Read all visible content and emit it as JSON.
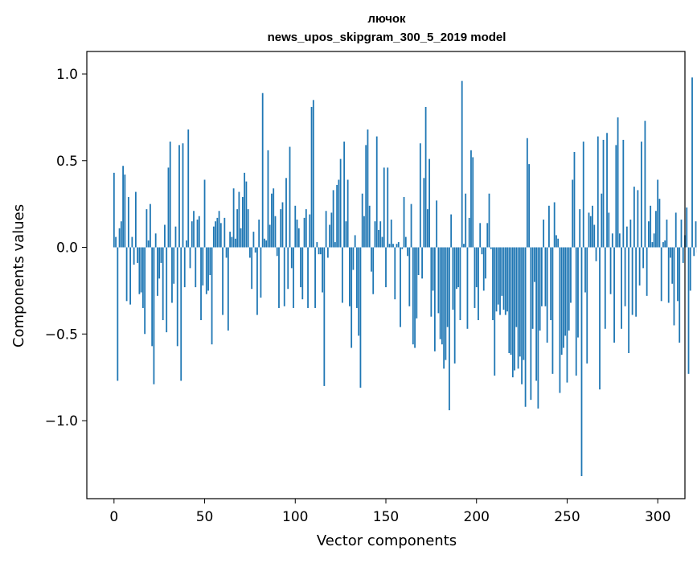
{
  "chart_data": {
    "type": "bar",
    "title_line1": "лючок",
    "title_line2": "news_upos_skipgram_300_5_2019 model",
    "xlabel": "Vector components",
    "ylabel": "Components values",
    "xlim": [
      -15,
      315
    ],
    "ylim": [
      -1.45,
      1.13
    ],
    "xticks": [
      0,
      50,
      100,
      150,
      200,
      250,
      300
    ],
    "xtick_labels": [
      "0",
      "50",
      "100",
      "150",
      "200",
      "250",
      "300"
    ],
    "yticks": [
      1.0,
      0.5,
      0.0,
      -0.5,
      -1.0
    ],
    "ytick_labels": [
      "1.0",
      "0.5",
      "0.0",
      "−0.5",
      "−1.0"
    ],
    "bar_color": "#1f77b4",
    "values": [
      0.43,
      0.06,
      -0.77,
      0.11,
      0.15,
      0.47,
      0.42,
      -0.31,
      0.29,
      -0.33,
      0.06,
      -0.1,
      0.32,
      -0.09,
      -0.27,
      -0.26,
      -0.35,
      -0.5,
      0.22,
      0.04,
      0.25,
      -0.57,
      -0.79,
      0.08,
      -0.28,
      -0.18,
      -0.09,
      -0.42,
      0.13,
      -0.49,
      0.46,
      0.61,
      -0.32,
      -0.21,
      0.12,
      -0.57,
      0.59,
      -0.77,
      0.6,
      -0.23,
      0.04,
      0.68,
      -0.12,
      0.15,
      0.21,
      -0.23,
      0.16,
      0.18,
      -0.42,
      -0.22,
      0.39,
      -0.27,
      -0.25,
      -0.16,
      -0.56,
      0.12,
      0.15,
      0.17,
      0.21,
      0.14,
      -0.39,
      0.17,
      -0.06,
      -0.48,
      0.09,
      0.06,
      0.34,
      0.05,
      0.22,
      0.32,
      0.11,
      0.29,
      0.43,
      0.38,
      0.22,
      -0.06,
      -0.24,
      0.09,
      -0.03,
      -0.39,
      0.16,
      -0.29,
      0.89,
      0.05,
      0.04,
      0.56,
      0.13,
      0.31,
      0.34,
      0.18,
      -0.05,
      -0.35,
      0.22,
      0.26,
      -0.34,
      0.4,
      -0.24,
      0.58,
      -0.12,
      -0.35,
      0.24,
      0.16,
      0.11,
      -0.23,
      -0.3,
      0.17,
      0.22,
      -0.35,
      0.19,
      0.81,
      0.85,
      -0.35,
      0.03,
      -0.04,
      -0.04,
      -0.26,
      -0.8,
      0.21,
      -0.06,
      0.13,
      0.2,
      0.33,
      0.03,
      0.36,
      0.39,
      0.51,
      -0.32,
      0.61,
      0.15,
      0.39,
      -0.34,
      -0.58,
      -0.13,
      0.07,
      -0.35,
      -0.51,
      -0.81,
      0.31,
      0.18,
      0.59,
      0.68,
      0.24,
      -0.14,
      -0.27,
      0.15,
      0.64,
      0.1,
      0.15,
      0.06,
      0.46,
      -0.23,
      0.46,
      0.02,
      0.16,
      0.02,
      -0.3,
      0.02,
      0.03,
      -0.46,
      -0.01,
      0.29,
      0.06,
      -0.05,
      -0.34,
      0.25,
      -0.56,
      -0.58,
      -0.41,
      -0.16,
      0.6,
      -0.18,
      0.4,
      0.81,
      0.22,
      0.51,
      -0.4,
      -0.25,
      -0.6,
      0.27,
      -0.38,
      -0.53,
      -0.56,
      -0.7,
      -0.65,
      -0.46,
      -0.94,
      0.19,
      -0.36,
      -0.67,
      -0.24,
      -0.23,
      -0.42,
      0.96,
      0.02,
      0.31,
      -0.47,
      0.17,
      0.56,
      0.52,
      -0.35,
      -0.23,
      -0.42,
      0.14,
      -0.04,
      -0.25,
      -0.18,
      0.14,
      0.31,
      -0.01,
      -0.42,
      -0.74,
      -0.37,
      -0.33,
      -0.39,
      -0.28,
      -0.36,
      -0.39,
      -0.37,
      -0.61,
      -0.62,
      -0.75,
      -0.71,
      -0.46,
      -0.7,
      -0.63,
      -0.79,
      -0.65,
      -0.92,
      0.63,
      0.48,
      -0.88,
      -0.47,
      -0.2,
      -0.77,
      -0.93,
      -0.48,
      -0.34,
      0.16,
      -0.34,
      -0.55,
      0.24,
      -0.42,
      -0.73,
      0.26,
      0.07,
      0.05,
      -0.84,
      -0.62,
      -0.58,
      -0.51,
      -0.78,
      -0.48,
      -0.32,
      0.39,
      0.55,
      -0.74,
      -0.52,
      0.22,
      -1.32,
      0.61,
      -0.26,
      -0.67,
      0.2,
      0.18,
      0.24,
      0.13,
      -0.08,
      0.64,
      -0.82,
      0.31,
      0.62,
      -0.47,
      0.66,
      0.2,
      -0.27,
      0.08,
      -0.55,
      0.59,
      0.75,
      0.08,
      -0.47,
      0.62,
      -0.34,
      0.12,
      -0.61,
      0.16,
      -0.39,
      0.35,
      -0.4,
      0.33,
      -0.22,
      0.61,
      -0.12,
      0.73,
      -0.28,
      0.15,
      0.24,
      0.03,
      0.08,
      0.21,
      0.39,
      0.28,
      -0.31,
      0.03,
      0.04,
      0.16,
      -0.32,
      -0.06,
      -0.21,
      -0.45,
      0.2,
      -0.31,
      -0.55,
      0.16,
      -0.09,
      0.07,
      0.23,
      -0.73,
      -0.25,
      0.98,
      -0.05,
      0.15,
      -0.03
    ]
  }
}
